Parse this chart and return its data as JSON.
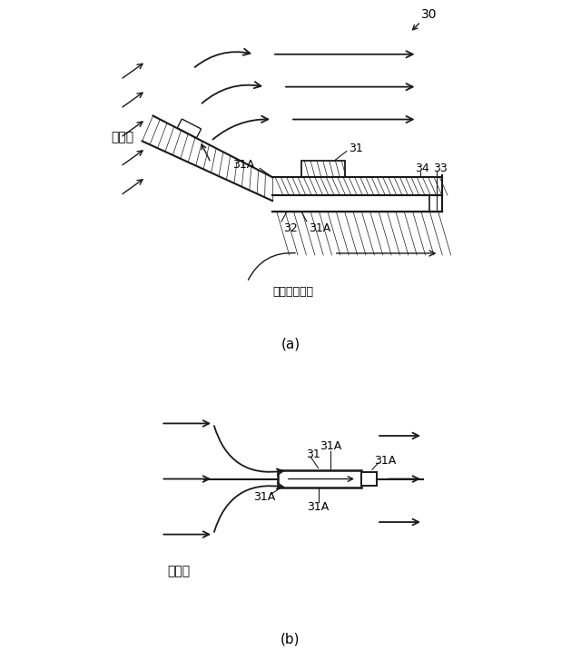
{
  "bg_color": "#ffffff",
  "line_color": "#1a1a1a",
  "label_30": "30",
  "label_31": "31",
  "label_31A": "31A",
  "label_32": "32",
  "label_33": "33",
  "label_34": "34",
  "label_a": "(a)",
  "label_b": "(b)",
  "label_wind_a": "走行風",
  "label_wind_b": "走行風",
  "label_denki": "電位低下領域"
}
